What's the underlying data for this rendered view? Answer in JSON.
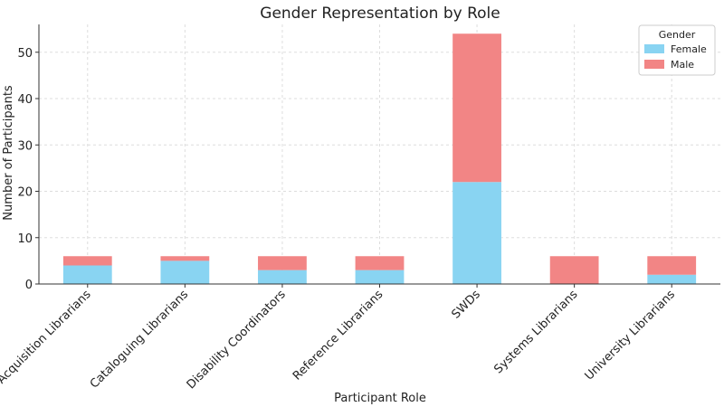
{
  "chart_data": {
    "type": "bar",
    "stacked": true,
    "title": "Gender Representation by Role",
    "xlabel": "Participant Role",
    "ylabel": "Number of Participants",
    "ylim": [
      0,
      56
    ],
    "yticks": [
      0,
      10,
      20,
      30,
      40,
      50
    ],
    "grid": true,
    "legend": {
      "title": "Gender",
      "placement": "top-right"
    },
    "categories": [
      "Acquisition Librarians",
      "Cataloguing Librarians",
      "Disability Coordinators",
      "Reference Librarians",
      "SWDs",
      "Systems Librarians",
      "University Librarians"
    ],
    "series": [
      {
        "name": "Female",
        "color": "#89d4f2",
        "values": [
          4,
          5,
          3,
          3,
          22,
          0,
          2
        ]
      },
      {
        "name": "Male",
        "color": "#f28585",
        "values": [
          2,
          1,
          3,
          3,
          32,
          6,
          4
        ]
      }
    ]
  }
}
